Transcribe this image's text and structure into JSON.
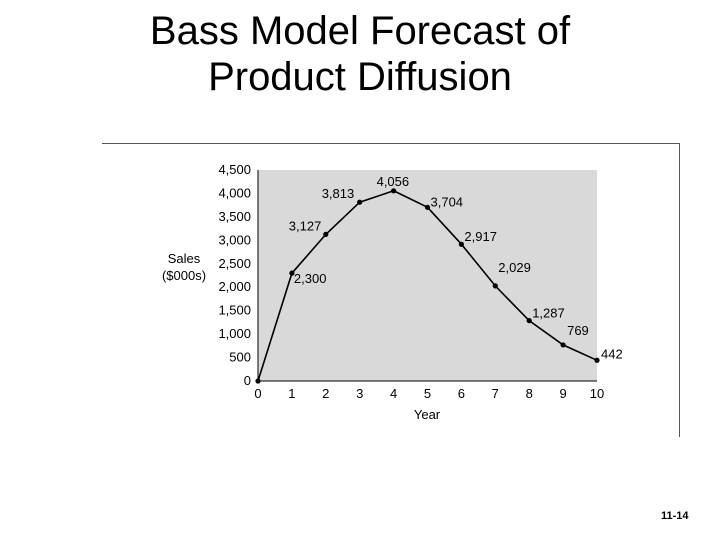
{
  "slide": {
    "title_line1": "Bass Model Forecast of",
    "title_line2": "Product Diffusion",
    "page_number": "11-14"
  },
  "colors": {
    "plot_background": "#d9d9d9",
    "line": "#000000",
    "frame": "#555555"
  },
  "chart_data": {
    "type": "line",
    "title": "",
    "xlabel": "Year",
    "ylabel_line1": "Sales",
    "ylabel_line2": "($000s)",
    "x": [
      0,
      1,
      2,
      3,
      4,
      5,
      6,
      7,
      8,
      9,
      10
    ],
    "series": [
      {
        "values": [
          0,
          2300,
          3127,
          3813,
          4056,
          3704,
          2917,
          2029,
          1287,
          769,
          442
        ],
        "labels": [
          "",
          "2,300",
          "3,127",
          "3,813",
          "4,056",
          "3,704",
          "2,917",
          "2,029",
          "1,287",
          "769",
          "442"
        ]
      }
    ],
    "xlim": [
      0,
      10
    ],
    "ylim": [
      0,
      4500
    ],
    "xticks": [
      "0",
      "1",
      "2",
      "3",
      "4",
      "5",
      "6",
      "7",
      "8",
      "9",
      "10"
    ],
    "yticks": [
      {
        "value": 0,
        "label": "0"
      },
      {
        "value": 500,
        "label": "500"
      },
      {
        "value": 1000,
        "label": "1,000"
      },
      {
        "value": 1500,
        "label": "1,500"
      },
      {
        "value": 2000,
        "label": "2,000"
      },
      {
        "value": 2500,
        "label": "2,500"
      },
      {
        "value": 3000,
        "label": "3,000"
      },
      {
        "value": 3500,
        "label": "3,500"
      },
      {
        "value": 4000,
        "label": "4,000"
      },
      {
        "value": 4500,
        "label": "4,500"
      }
    ],
    "grid": false,
    "legend": false
  }
}
